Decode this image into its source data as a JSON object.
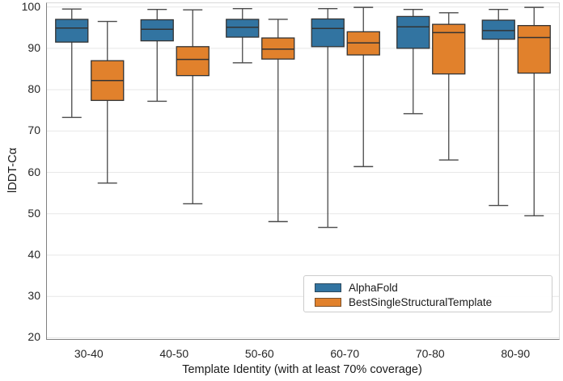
{
  "chart_data": {
    "type": "boxplot",
    "title": "",
    "xlabel": "Template Identity (with at least 70% coverage)",
    "ylabel": "lDDT-Cα",
    "ylim": [
      19.7,
      100.9
    ],
    "yticks": [
      20,
      30,
      40,
      50,
      60,
      70,
      80,
      90,
      100
    ],
    "grid": "horizontal",
    "categories": [
      "30-40",
      "40-50",
      "50-60",
      "60-70",
      "70-80",
      "80-90"
    ],
    "legend": {
      "position": "lower-right",
      "entries": [
        "AlphaFold",
        "BestSingleStructuralTemplate"
      ]
    },
    "series": [
      {
        "name": "AlphaFold",
        "color": "#3274A1",
        "boxes": [
          {
            "category": "30-40",
            "whislo": 73.3,
            "q1": 91.5,
            "med": 94.9,
            "q3": 97.0,
            "whishi": 99.5
          },
          {
            "category": "40-50",
            "whislo": 77.2,
            "q1": 91.8,
            "med": 94.6,
            "q3": 96.9,
            "whishi": 99.4
          },
          {
            "category": "50-60",
            "whislo": 86.5,
            "q1": 92.7,
            "med": 95.1,
            "q3": 97.0,
            "whishi": 99.6
          },
          {
            "category": "60-70",
            "whislo": 46.7,
            "q1": 90.4,
            "med": 94.8,
            "q3": 97.1,
            "whishi": 99.6
          },
          {
            "category": "70-80",
            "whislo": 74.2,
            "q1": 90.0,
            "med": 95.2,
            "q3": 97.7,
            "whishi": 99.4
          },
          {
            "category": "80-90",
            "whislo": 52.0,
            "q1": 92.2,
            "med": 94.3,
            "q3": 96.8,
            "whishi": 99.4
          }
        ]
      },
      {
        "name": "BestSingleStructuralTemplate",
        "color": "#E1812C",
        "boxes": [
          {
            "category": "30-40",
            "whislo": 57.4,
            "q1": 77.4,
            "med": 82.2,
            "q3": 87.0,
            "whishi": 96.5
          },
          {
            "category": "40-50",
            "whislo": 52.4,
            "q1": 83.4,
            "med": 87.3,
            "q3": 90.4,
            "whishi": 99.3
          },
          {
            "category": "50-60",
            "whislo": 48.1,
            "q1": 87.4,
            "med": 89.8,
            "q3": 92.5,
            "whishi": 97.0
          },
          {
            "category": "60-70",
            "whislo": 61.4,
            "q1": 88.4,
            "med": 91.3,
            "q3": 94.0,
            "whishi": 99.9
          },
          {
            "category": "70-80",
            "whislo": 63.0,
            "q1": 83.8,
            "med": 93.8,
            "q3": 95.8,
            "whishi": 98.6
          },
          {
            "category": "80-90",
            "whislo": 49.5,
            "q1": 84.0,
            "med": 92.6,
            "q3": 95.5,
            "whishi": 99.9
          }
        ]
      }
    ],
    "style": {
      "box_edge_color": "#333333",
      "whisker_color": "#4a4a4a",
      "gridline_color": "#e7e7e7",
      "axis_spine_dark": "#808080",
      "axis_spine_light": "#d9d9d9",
      "background": "#ffffff",
      "tick_label_color": "#262626"
    }
  }
}
